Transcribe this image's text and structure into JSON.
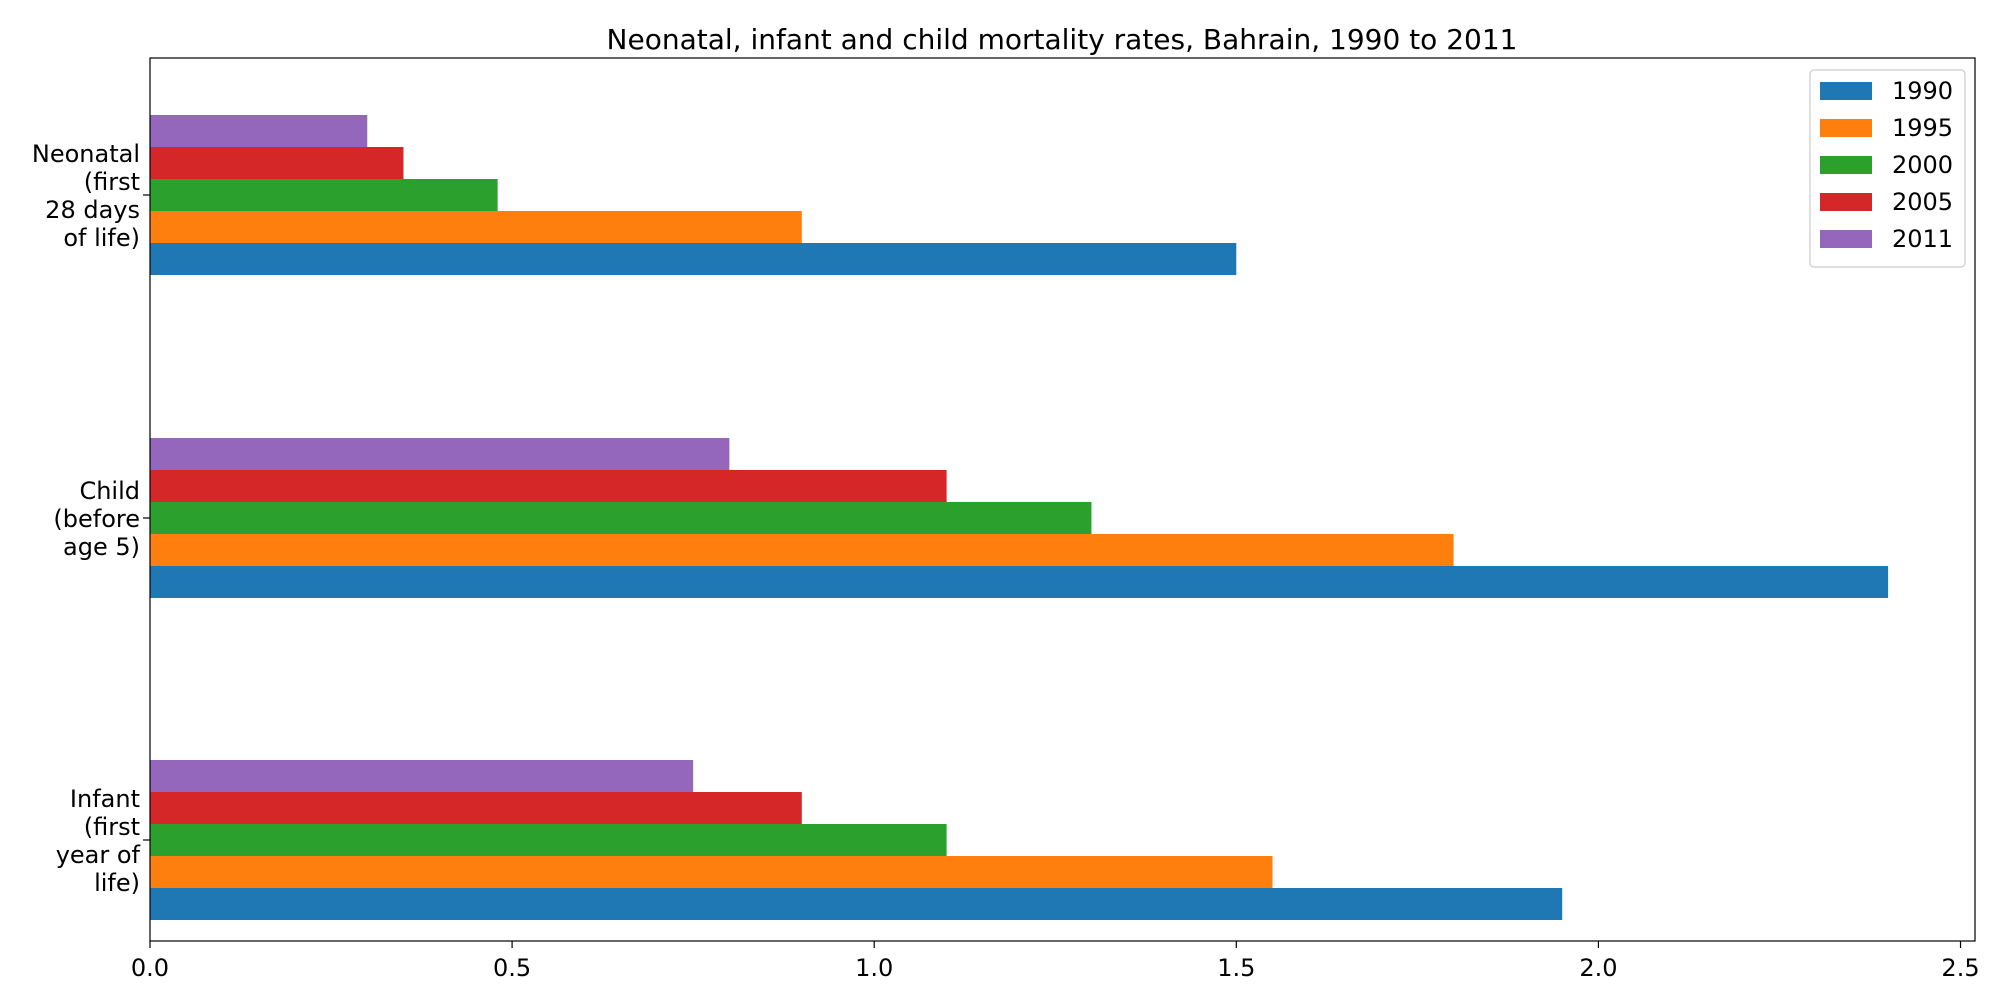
{
  "chart_data": {
    "type": "bar",
    "orientation": "horizontal",
    "title": "Neonatal, infant and child mortality rates, Bahrain, 1990 to 2011",
    "xlabel": "",
    "ylabel": "",
    "categories": [
      [
        "Infant",
        "(first",
        "year of",
        "life)"
      ],
      [
        "Child",
        "(before",
        "age 5)"
      ],
      [
        "Neonatal",
        "(first",
        "28 days",
        "of life)"
      ]
    ],
    "xlim": [
      0,
      2.52
    ],
    "xticks": [
      "0.0",
      "0.5",
      "1.0",
      "1.5",
      "2.0",
      "2.5"
    ],
    "series": [
      {
        "name": "1990",
        "color": "#1f77b4",
        "values": [
          1.95,
          2.4,
          1.5
        ]
      },
      {
        "name": "1995",
        "color": "#ff7f0e",
        "values": [
          1.55,
          1.8,
          0.9
        ]
      },
      {
        "name": "2000",
        "color": "#2ca02c",
        "values": [
          1.1,
          1.3,
          0.48
        ]
      },
      {
        "name": "2005",
        "color": "#d62728",
        "values": [
          0.9,
          1.1,
          0.35
        ]
      },
      {
        "name": "2011",
        "color": "#9467bd",
        "values": [
          0.75,
          0.8,
          0.3
        ]
      }
    ],
    "grid": false,
    "legend_position": "top-right"
  }
}
